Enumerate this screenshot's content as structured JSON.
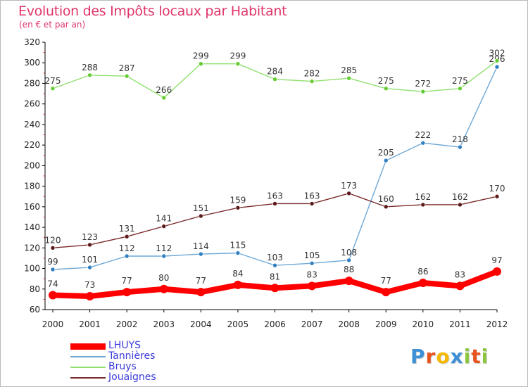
{
  "header": {
    "title": "Evolution des Impôts locaux par Habitant",
    "subtitle": "(en € et par an)"
  },
  "logo": {
    "text": "Proxiti",
    "letters": [
      {
        "ch": "P",
        "color": "#3d8fd6"
      },
      {
        "ch": "r",
        "color": "#e8531e"
      },
      {
        "ch": "o",
        "color": "#f5b800"
      },
      {
        "ch": "x",
        "color": "#3d8fd6"
      },
      {
        "ch": "i",
        "color": "#8cc63f"
      },
      {
        "ch": "t",
        "color": "#e8531e"
      },
      {
        "ch": "i",
        "color": "#8cc63f"
      }
    ]
  },
  "chart_data": {
    "type": "line",
    "title": "Evolution des Impôts locaux par Habitant",
    "subtitle": "(en € et par an)",
    "xlabel": "",
    "ylabel": "",
    "x": [
      "2000",
      "2001",
      "2002",
      "2003",
      "2004",
      "2005",
      "2006",
      "2007",
      "2008",
      "2009",
      "2010",
      "2011",
      "2012"
    ],
    "ylim": [
      60,
      320
    ],
    "yticks": [
      60,
      80,
      100,
      120,
      140,
      160,
      180,
      200,
      220,
      240,
      260,
      280,
      300,
      320
    ],
    "grid": false,
    "legend_position": "bottom-left",
    "series": [
      {
        "name": "LHUYS",
        "color": "#ff0000",
        "marker_color": "#ff0000",
        "style": "thick",
        "values": [
          74,
          73,
          77,
          80,
          77,
          84,
          81,
          83,
          88,
          77,
          86,
          83,
          97
        ]
      },
      {
        "name": "Tannières",
        "color": "#6fa8d6",
        "marker_color": "#2f7fc1",
        "style": "thin",
        "values": [
          99,
          101,
          112,
          112,
          114,
          115,
          103,
          105,
          108,
          205,
          222,
          218,
          296
        ]
      },
      {
        "name": "Bruys",
        "color": "#90e070",
        "marker_color": "#66cc33",
        "style": "thin",
        "values": [
          275,
          288,
          287,
          266,
          299,
          299,
          284,
          282,
          285,
          275,
          272,
          275,
          302
        ]
      },
      {
        "name": "Jouaignes",
        "color": "#7a2a2a",
        "marker_color": "#5a1a1a",
        "style": "thin",
        "values": [
          120,
          123,
          131,
          141,
          151,
          159,
          163,
          163,
          173,
          160,
          162,
          162,
          170
        ]
      }
    ]
  }
}
